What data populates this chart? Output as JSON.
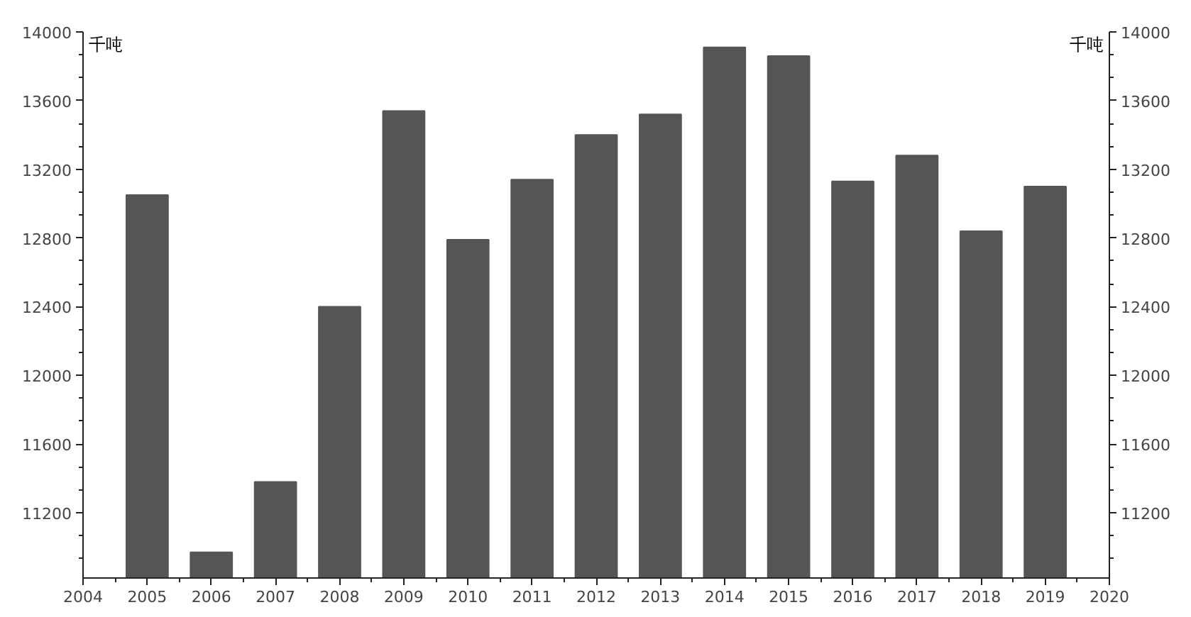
{
  "chart_data": {
    "type": "bar",
    "ylabel": "千吨",
    "y2label": "千吨",
    "x": [
      2005,
      2006,
      2007,
      2008,
      2009,
      2010,
      2011,
      2012,
      2013,
      2014,
      2015,
      2016,
      2017,
      2018,
      2019
    ],
    "series": [
      {
        "color": "#555555",
        "values": [
          13050,
          10970,
          11380,
          12400,
          13540,
          12790,
          13140,
          13400,
          13520,
          13910,
          13860,
          13130,
          13280,
          12840,
          13100
        ]
      }
    ],
    "xlim": [
      2004,
      2020
    ],
    "xticks": [
      2004,
      2005,
      2006,
      2007,
      2008,
      2009,
      2010,
      2011,
      2012,
      2013,
      2014,
      2015,
      2016,
      2017,
      2018,
      2019,
      2020
    ],
    "ylim": [
      10820,
      14000
    ],
    "yticks": [
      11200,
      11600,
      12000,
      12400,
      12800,
      13200,
      13600,
      14000
    ],
    "y2lim": [
      10820,
      14000
    ],
    "y2ticks": [
      11200,
      11600,
      12000,
      12400,
      12800,
      13200,
      13600,
      14000
    ],
    "grid": false
  }
}
